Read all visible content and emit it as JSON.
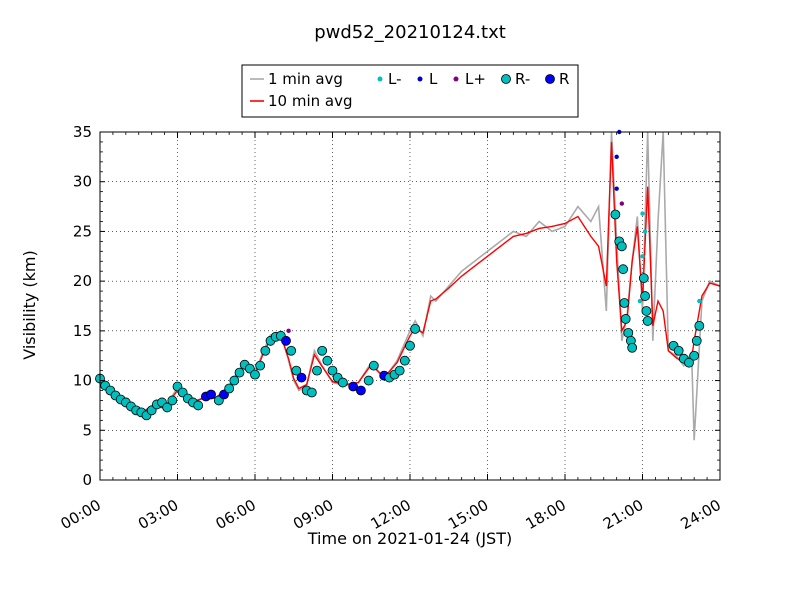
{
  "chart_data": {
    "type": "line",
    "title": "pwd52_20210124.txt",
    "xlabel": "Time on 2021-01-24 (JST)",
    "ylabel": "Visibility (km)",
    "xlim": [
      "00:00",
      "24:00"
    ],
    "ylim": [
      0,
      35
    ],
    "grid": true,
    "legend_position": "top-center",
    "x_ticks": [
      "00:00",
      "03:00",
      "06:00",
      "09:00",
      "12:00",
      "15:00",
      "18:00",
      "21:00",
      "24:00"
    ],
    "y_ticks": [
      0,
      5,
      10,
      15,
      20,
      25,
      30,
      35
    ],
    "colors": {
      "one_min": "#aaaaaa",
      "ten_min": "#ff0000",
      "Lminus": "#00bfbf",
      "L": "#0000cc",
      "Lplus": "#800080",
      "Rminus": "#00bfbf",
      "R": "#0000ff"
    },
    "legend": [
      {
        "label": "1 min avg",
        "kind": "line",
        "color": "#aaaaaa"
      },
      {
        "label": "L-",
        "kind": "dot",
        "color": "#00bfbf"
      },
      {
        "label": "L",
        "kind": "dot",
        "color": "#0000cc"
      },
      {
        "label": "L+",
        "kind": "dot",
        "color": "#800080"
      },
      {
        "label": "R-",
        "kind": "circle",
        "color": "#00bfbf"
      },
      {
        "label": "R",
        "kind": "circle",
        "color": "#0000ff"
      },
      {
        "label": "10 min avg",
        "kind": "line",
        "color": "#ff0000"
      }
    ],
    "series_1min_hours": [
      0,
      0.5,
      1,
      1.5,
      2,
      2.5,
      3,
      3.3,
      3.6,
      4,
      4.5,
      5,
      5.5,
      6,
      6.3,
      6.6,
      7,
      7.3,
      7.5,
      7.7,
      8,
      8.3,
      8.6,
      9,
      9.5,
      10,
      10.5,
      11,
      11.5,
      12,
      12.2,
      12.5,
      12.8,
      13,
      13.5,
      14,
      14.5,
      15,
      15.5,
      16,
      16.5,
      17,
      17.5,
      18,
      18.5,
      19,
      19.3,
      19.6,
      19.8,
      20,
      20.2,
      20.4,
      20.6,
      20.8,
      21,
      21.2,
      21.4,
      21.6,
      21.8,
      22,
      22.3,
      22.6,
      22.9,
      23,
      23.3,
      23.6,
      24
    ],
    "series_1min_values": [
      10.2,
      8.7,
      7.6,
      6.5,
      7.5,
      7.2,
      9.3,
      8.2,
      7.8,
      8.3,
      8.2,
      9.5,
      11.5,
      10.8,
      12.8,
      14.6,
      14.8,
      12.0,
      10.0,
      9.0,
      9.5,
      13.0,
      11.5,
      9.8,
      9.5,
      9.8,
      11.8,
      10.2,
      12.0,
      15.0,
      16.0,
      14.5,
      18.5,
      18.0,
      19.5,
      21.0,
      22.0,
      23.0,
      24.0,
      25.0,
      24.5,
      26.0,
      25.0,
      25.5,
      27.5,
      26.0,
      27.5,
      17.0,
      35.0,
      24.0,
      14.0,
      16.5,
      22.0,
      26.5,
      17.0,
      35.0,
      14.0,
      26.0,
      35.0,
      13.0,
      12.5,
      11.5,
      12.8,
      4.0,
      18.0,
      20.0,
      19.5
    ],
    "series_10min_hours": [
      0,
      0.5,
      1,
      1.5,
      2,
      2.5,
      3,
      3.3,
      3.6,
      4,
      4.5,
      5,
      5.5,
      6,
      6.3,
      6.6,
      7,
      7.3,
      7.5,
      7.7,
      8,
      8.3,
      8.6,
      9,
      9.5,
      10,
      10.5,
      11,
      11.5,
      12,
      12.2,
      12.5,
      12.8,
      13,
      13.5,
      14,
      14.5,
      15,
      15.5,
      16,
      16.5,
      17,
      17.5,
      18,
      18.5,
      19,
      19.3,
      19.6,
      19.8,
      20,
      20.2,
      20.4,
      20.6,
      20.8,
      21,
      21.2,
      21.4,
      21.6,
      21.8,
      22,
      22.3,
      22.6,
      22.9,
      23,
      23.3,
      23.6,
      24
    ],
    "series_10min_values": [
      10.0,
      8.6,
      7.5,
      6.6,
      7.4,
      7.3,
      9.0,
      8.3,
      7.9,
      8.2,
      8.3,
      9.4,
      11.3,
      10.6,
      12.6,
      14.2,
      14.5,
      12.2,
      10.2,
      9.2,
      9.6,
      12.6,
      11.4,
      9.9,
      9.6,
      9.8,
      11.6,
      10.3,
      11.8,
      14.5,
      15.3,
      14.8,
      18.0,
      18.2,
      19.3,
      20.5,
      21.5,
      22.5,
      23.5,
      24.5,
      24.8,
      25.3,
      25.5,
      25.8,
      26.5,
      24.5,
      23.5,
      19.5,
      34.0,
      22.0,
      15.0,
      16.0,
      22.0,
      25.5,
      18.0,
      29.5,
      15.5,
      18.0,
      17.0,
      13.0,
      12.3,
      11.8,
      12.2,
      14.0,
      18.5,
      19.8,
      19.5
    ],
    "markers": [
      {
        "type": "Rminus",
        "x": 0.0,
        "y": 10.2
      },
      {
        "type": "Rminus",
        "x": 0.2,
        "y": 9.5
      },
      {
        "type": "Rminus",
        "x": 0.4,
        "y": 9.0
      },
      {
        "type": "Rminus",
        "x": 0.6,
        "y": 8.5
      },
      {
        "type": "Rminus",
        "x": 0.8,
        "y": 8.1
      },
      {
        "type": "Rminus",
        "x": 1.0,
        "y": 7.8
      },
      {
        "type": "Rminus",
        "x": 1.2,
        "y": 7.4
      },
      {
        "type": "Rminus",
        "x": 1.4,
        "y": 7.0
      },
      {
        "type": "Rminus",
        "x": 1.6,
        "y": 6.8
      },
      {
        "type": "Rminus",
        "x": 1.8,
        "y": 6.5
      },
      {
        "type": "Rminus",
        "x": 2.0,
        "y": 7.0
      },
      {
        "type": "Rminus",
        "x": 2.2,
        "y": 7.6
      },
      {
        "type": "Rminus",
        "x": 2.4,
        "y": 7.8
      },
      {
        "type": "Rminus",
        "x": 2.6,
        "y": 7.3
      },
      {
        "type": "Rminus",
        "x": 2.8,
        "y": 8.0
      },
      {
        "type": "Rminus",
        "x": 3.0,
        "y": 9.4
      },
      {
        "type": "Rminus",
        "x": 3.2,
        "y": 8.8
      },
      {
        "type": "Rminus",
        "x": 3.4,
        "y": 8.2
      },
      {
        "type": "Rminus",
        "x": 3.6,
        "y": 7.8
      },
      {
        "type": "Rminus",
        "x": 3.8,
        "y": 7.5
      },
      {
        "type": "R",
        "x": 4.1,
        "y": 8.4
      },
      {
        "type": "R",
        "x": 4.3,
        "y": 8.6
      },
      {
        "type": "Rminus",
        "x": 4.6,
        "y": 8.0
      },
      {
        "type": "R",
        "x": 4.8,
        "y": 8.6
      },
      {
        "type": "Rminus",
        "x": 5.0,
        "y": 9.2
      },
      {
        "type": "Rminus",
        "x": 5.2,
        "y": 10.0
      },
      {
        "type": "Rminus",
        "x": 5.4,
        "y": 10.8
      },
      {
        "type": "Rminus",
        "x": 5.6,
        "y": 11.6
      },
      {
        "type": "Rminus",
        "x": 5.8,
        "y": 11.2
      },
      {
        "type": "Rminus",
        "x": 6.0,
        "y": 10.6
      },
      {
        "type": "Rminus",
        "x": 6.2,
        "y": 11.5
      },
      {
        "type": "Rminus",
        "x": 6.4,
        "y": 13.0
      },
      {
        "type": "Rminus",
        "x": 6.6,
        "y": 14.0
      },
      {
        "type": "Rminus",
        "x": 6.8,
        "y": 14.4
      },
      {
        "type": "Rminus",
        "x": 7.0,
        "y": 14.5
      },
      {
        "type": "Lplus",
        "x": 7.3,
        "y": 15.0
      },
      {
        "type": "R",
        "x": 7.2,
        "y": 14.0
      },
      {
        "type": "Rminus",
        "x": 7.4,
        "y": 13.0
      },
      {
        "type": "Rminus",
        "x": 7.6,
        "y": 11.0
      },
      {
        "type": "R",
        "x": 7.8,
        "y": 10.3
      },
      {
        "type": "Rminus",
        "x": 8.0,
        "y": 9.0
      },
      {
        "type": "Rminus",
        "x": 8.2,
        "y": 8.8
      },
      {
        "type": "Rminus",
        "x": 8.4,
        "y": 11.0
      },
      {
        "type": "Rminus",
        "x": 8.6,
        "y": 13.0
      },
      {
        "type": "Rminus",
        "x": 8.8,
        "y": 12.0
      },
      {
        "type": "Rminus",
        "x": 9.0,
        "y": 11.0
      },
      {
        "type": "Rminus",
        "x": 9.2,
        "y": 10.3
      },
      {
        "type": "Rminus",
        "x": 9.4,
        "y": 9.8
      },
      {
        "type": "R",
        "x": 9.8,
        "y": 9.4
      },
      {
        "type": "R",
        "x": 10.1,
        "y": 9.0
      },
      {
        "type": "Rminus",
        "x": 10.4,
        "y": 10.0
      },
      {
        "type": "Rminus",
        "x": 10.6,
        "y": 11.5
      },
      {
        "type": "R",
        "x": 11.0,
        "y": 10.5
      },
      {
        "type": "Rminus",
        "x": 11.2,
        "y": 10.3
      },
      {
        "type": "Rminus",
        "x": 11.4,
        "y": 10.6
      },
      {
        "type": "Rminus",
        "x": 11.6,
        "y": 11.0
      },
      {
        "type": "Rminus",
        "x": 11.8,
        "y": 12.0
      },
      {
        "type": "Rminus",
        "x": 12.0,
        "y": 13.5
      },
      {
        "type": "Rminus",
        "x": 12.2,
        "y": 15.2
      },
      {
        "type": "L",
        "x": 20.0,
        "y": 32.5
      },
      {
        "type": "L",
        "x": 20.0,
        "y": 29.3
      },
      {
        "type": "L",
        "x": 20.1,
        "y": 35.0
      },
      {
        "type": "Lplus",
        "x": 20.2,
        "y": 27.8
      },
      {
        "type": "Rminus",
        "x": 19.95,
        "y": 26.7
      },
      {
        "type": "Rminus",
        "x": 20.1,
        "y": 24.0
      },
      {
        "type": "Rminus",
        "x": 20.2,
        "y": 23.5
      },
      {
        "type": "Rminus",
        "x": 20.25,
        "y": 21.2
      },
      {
        "type": "Rminus",
        "x": 20.3,
        "y": 17.8
      },
      {
        "type": "Rminus",
        "x": 20.35,
        "y": 16.2
      },
      {
        "type": "Rminus",
        "x": 20.45,
        "y": 14.8
      },
      {
        "type": "Rminus",
        "x": 20.55,
        "y": 14.0
      },
      {
        "type": "Rminus",
        "x": 20.6,
        "y": 13.3
      },
      {
        "type": "Lminus",
        "x": 20.9,
        "y": 18.0
      },
      {
        "type": "Lminus",
        "x": 21.0,
        "y": 22.5
      },
      {
        "type": "Lminus",
        "x": 21.0,
        "y": 26.8
      },
      {
        "type": "Lminus",
        "x": 21.1,
        "y": 25.0
      },
      {
        "type": "Rminus",
        "x": 21.05,
        "y": 20.3
      },
      {
        "type": "Rminus",
        "x": 21.1,
        "y": 18.5
      },
      {
        "type": "Rminus",
        "x": 21.15,
        "y": 17.0
      },
      {
        "type": "Rminus",
        "x": 21.2,
        "y": 16.0
      },
      {
        "type": "Rminus",
        "x": 22.2,
        "y": 13.5
      },
      {
        "type": "Rminus",
        "x": 22.4,
        "y": 13.0
      },
      {
        "type": "Rminus",
        "x": 22.6,
        "y": 12.2
      },
      {
        "type": "Rminus",
        "x": 22.8,
        "y": 11.8
      },
      {
        "type": "Rminus",
        "x": 23.0,
        "y": 12.5
      },
      {
        "type": "Rminus",
        "x": 23.1,
        "y": 14.0
      },
      {
        "type": "Rminus",
        "x": 23.2,
        "y": 15.5
      },
      {
        "type": "Lminus",
        "x": 23.2,
        "y": 18.0
      }
    ]
  }
}
